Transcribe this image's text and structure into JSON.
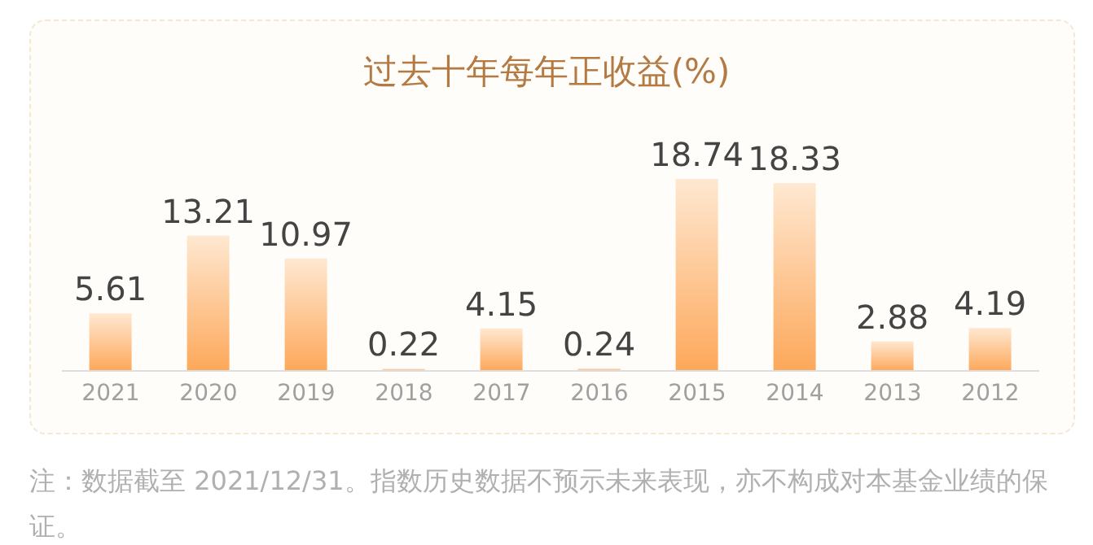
{
  "chart_data": {
    "type": "bar",
    "title": "过去十年每年正收益(%)",
    "categories": [
      "2021",
      "2020",
      "2019",
      "2018",
      "2017",
      "2016",
      "2015",
      "2014",
      "2013",
      "2012"
    ],
    "values": [
      5.61,
      13.21,
      10.97,
      0.22,
      4.15,
      0.24,
      18.74,
      18.33,
      2.88,
      4.19
    ],
    "color": "#fda85a",
    "data_labels": true,
    "grid": false,
    "legend": false,
    "tick_labels": "x",
    "annotations": [
      "注：数据截至 2021/12/31。指数历史数据不预示未来表现，亦不构成对本基金业绩的保证。"
    ]
  }
}
